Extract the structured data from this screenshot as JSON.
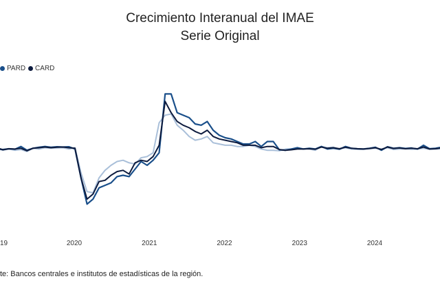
{
  "header": {
    "title_line1": "Crecimiento Interanual del IMAE",
    "title_line2": "Serie Original"
  },
  "legend": [
    {
      "label": "PARD",
      "color": "#1a4f8a"
    },
    {
      "label": "CARD",
      "color": "#0d1b3e"
    }
  ],
  "footer": {
    "source": "te: Bancos centrales e institutos de estadísticas de la región."
  },
  "chart_data": {
    "type": "line",
    "title": "Crecimiento Interanual del IMAE",
    "subtitle": "Serie Original",
    "x_ticks": [
      "19",
      "2020",
      "2021",
      "2022",
      "2023",
      "2024"
    ],
    "x_tick_positions": [
      2019.0,
      2020.0,
      2021.0,
      2022.0,
      2023.0,
      2024.0
    ],
    "ylim": [
      -25,
      30
    ],
    "grid": false,
    "legend_position": "top-left",
    "series": [
      {
        "name": "",
        "color": "#a9bfd9",
        "x": [
          2018.95,
          2019.05,
          2019.13,
          2019.21,
          2019.29,
          2019.37,
          2019.45,
          2019.53,
          2019.61,
          2019.69,
          2019.77,
          2019.85,
          2019.93,
          2020.01,
          2020.09,
          2020.17,
          2020.25,
          2020.33,
          2020.41,
          2020.49,
          2020.57,
          2020.65,
          2020.73,
          2020.81,
          2020.89,
          2020.97,
          2021.05,
          2021.13,
          2021.21,
          2021.29,
          2021.37,
          2021.45,
          2021.53,
          2021.61,
          2021.69,
          2021.77,
          2021.85,
          2021.93,
          2022.01,
          2022.09,
          2022.17,
          2022.25,
          2022.33,
          2022.41,
          2022.49,
          2022.57,
          2022.65,
          2022.73,
          2022.81,
          2022.89,
          2022.97,
          2023.05,
          2023.13,
          2023.21,
          2023.29,
          2023.37,
          2023.45,
          2023.53,
          2023.61,
          2023.69,
          2023.77,
          2023.85,
          2023.93,
          2024.01,
          2024.09,
          2024.17,
          2024.25,
          2024.33,
          2024.41,
          2024.49,
          2024.57,
          2024.65,
          2024.73,
          2024.81,
          2024.89,
          2024.97,
          2025.05
        ],
        "values": [
          4.0,
          3.0,
          3.5,
          3.0,
          3.3,
          2.5,
          3.8,
          3.5,
          4.0,
          3.8,
          3.9,
          4.0,
          3.5,
          4.0,
          -6.0,
          -13.5,
          -14.0,
          -8.0,
          -5.0,
          -3.0,
          -1.5,
          -1.0,
          -2.0,
          -2.5,
          0.0,
          0.5,
          2.0,
          14.0,
          17.0,
          17.5,
          13.0,
          11.0,
          8.5,
          7.0,
          7.5,
          8.5,
          6.0,
          5.5,
          5.0,
          5.0,
          4.5,
          4.5,
          5.0,
          4.5,
          3.5,
          3.0,
          3.0,
          2.8,
          3.5,
          3.5,
          3.8,
          3.6,
          3.5,
          3.0,
          4.5,
          4.0,
          4.2,
          3.5,
          4.0,
          3.5,
          3.4,
          3.4,
          3.6,
          3.8,
          3.5,
          4.0,
          3.3,
          3.5,
          3.6,
          3.4,
          3.5,
          3.8,
          3.4,
          3.5,
          3.6,
          3.7,
          3.8
        ]
      },
      {
        "name": "PARD",
        "color": "#1a4f8a",
        "x": [
          2018.95,
          2019.05,
          2019.13,
          2019.21,
          2019.29,
          2019.37,
          2019.45,
          2019.53,
          2019.61,
          2019.69,
          2019.77,
          2019.85,
          2019.93,
          2020.01,
          2020.09,
          2020.17,
          2020.25,
          2020.33,
          2020.41,
          2020.49,
          2020.57,
          2020.65,
          2020.73,
          2020.81,
          2020.89,
          2020.97,
          2021.05,
          2021.13,
          2021.21,
          2021.29,
          2021.37,
          2021.45,
          2021.53,
          2021.61,
          2021.69,
          2021.77,
          2021.85,
          2021.93,
          2022.01,
          2022.09,
          2022.17,
          2022.25,
          2022.33,
          2022.41,
          2022.49,
          2022.57,
          2022.65,
          2022.73,
          2022.81,
          2022.89,
          2022.97,
          2023.05,
          2023.13,
          2023.21,
          2023.29,
          2023.37,
          2023.45,
          2023.53,
          2023.61,
          2023.69,
          2023.77,
          2023.85,
          2023.93,
          2024.01,
          2024.09,
          2024.17,
          2024.25,
          2024.33,
          2024.41,
          2024.49,
          2024.57,
          2024.65,
          2024.73,
          2024.81,
          2024.89,
          2024.97,
          2025.05
        ],
        "values": [
          3.5,
          3.3,
          3.6,
          3.4,
          4.5,
          3.0,
          3.8,
          4.2,
          4.5,
          4.2,
          4.4,
          4.3,
          4.4,
          3.5,
          -8.0,
          -18.5,
          -16.5,
          -12.0,
          -11.0,
          -10.0,
          -7.5,
          -7.0,
          -7.5,
          -4.5,
          -1.5,
          -3.0,
          -1.0,
          2.0,
          25.5,
          25.5,
          18.0,
          17.0,
          16.0,
          13.5,
          13.0,
          14.5,
          11.0,
          9.0,
          8.0,
          7.5,
          6.5,
          5.5,
          5.5,
          6.5,
          4.5,
          6.5,
          6.5,
          3.2,
          3.0,
          3.5,
          4.0,
          3.5,
          3.8,
          3.5,
          4.5,
          3.5,
          3.8,
          3.4,
          4.5,
          3.8,
          3.6,
          3.5,
          3.8,
          4.2,
          3.0,
          4.4,
          3.8,
          4.0,
          3.7,
          3.9,
          3.5,
          5.0,
          3.6,
          3.8,
          4.2,
          4.0,
          4.3
        ]
      },
      {
        "name": "CARD",
        "color": "#0d1b3e",
        "x": [
          2018.95,
          2019.05,
          2019.13,
          2019.21,
          2019.29,
          2019.37,
          2019.45,
          2019.53,
          2019.61,
          2019.69,
          2019.77,
          2019.85,
          2019.93,
          2020.01,
          2020.09,
          2020.17,
          2020.25,
          2020.33,
          2020.41,
          2020.49,
          2020.57,
          2020.65,
          2020.73,
          2020.81,
          2020.89,
          2020.97,
          2021.05,
          2021.13,
          2021.21,
          2021.29,
          2021.37,
          2021.45,
          2021.53,
          2021.61,
          2021.69,
          2021.77,
          2021.85,
          2021.93,
          2022.01,
          2022.09,
          2022.17,
          2022.25,
          2022.33,
          2022.41,
          2022.49,
          2022.57,
          2022.65,
          2022.73,
          2022.81,
          2022.89,
          2022.97,
          2023.05,
          2023.13,
          2023.21,
          2023.29,
          2023.37,
          2023.45,
          2023.53,
          2023.61,
          2023.69,
          2023.77,
          2023.85,
          2023.93,
          2024.01,
          2024.09,
          2024.17,
          2024.25,
          2024.33,
          2024.41,
          2024.49,
          2024.57,
          2024.65,
          2024.73,
          2024.81,
          2024.89,
          2024.97,
          2025.05
        ],
        "values": [
          4.2,
          3.2,
          3.6,
          3.5,
          3.8,
          2.8,
          3.8,
          4.0,
          4.3,
          4.0,
          4.2,
          4.3,
          4.0,
          3.8,
          -8.0,
          -16.5,
          -14.5,
          -9.5,
          -9.0,
          -7.0,
          -5.5,
          -5.0,
          -6.5,
          -2.0,
          -1.0,
          -1.5,
          0.5,
          5.0,
          22.5,
          18.0,
          14.5,
          13.0,
          12.0,
          10.5,
          9.5,
          11.0,
          8.5,
          7.5,
          7.0,
          6.5,
          6.0,
          5.0,
          5.0,
          5.0,
          4.0,
          4.5,
          4.5,
          3.3,
          3.0,
          3.2,
          3.5,
          3.5,
          3.6,
          3.4,
          4.3,
          3.8,
          4.0,
          3.6,
          4.2,
          3.8,
          3.6,
          3.5,
          3.7,
          4.0,
          3.3,
          4.3,
          3.7,
          3.9,
          3.6,
          3.8,
          3.6,
          4.3,
          3.5,
          3.6,
          3.9,
          3.9,
          4.0
        ]
      }
    ]
  }
}
